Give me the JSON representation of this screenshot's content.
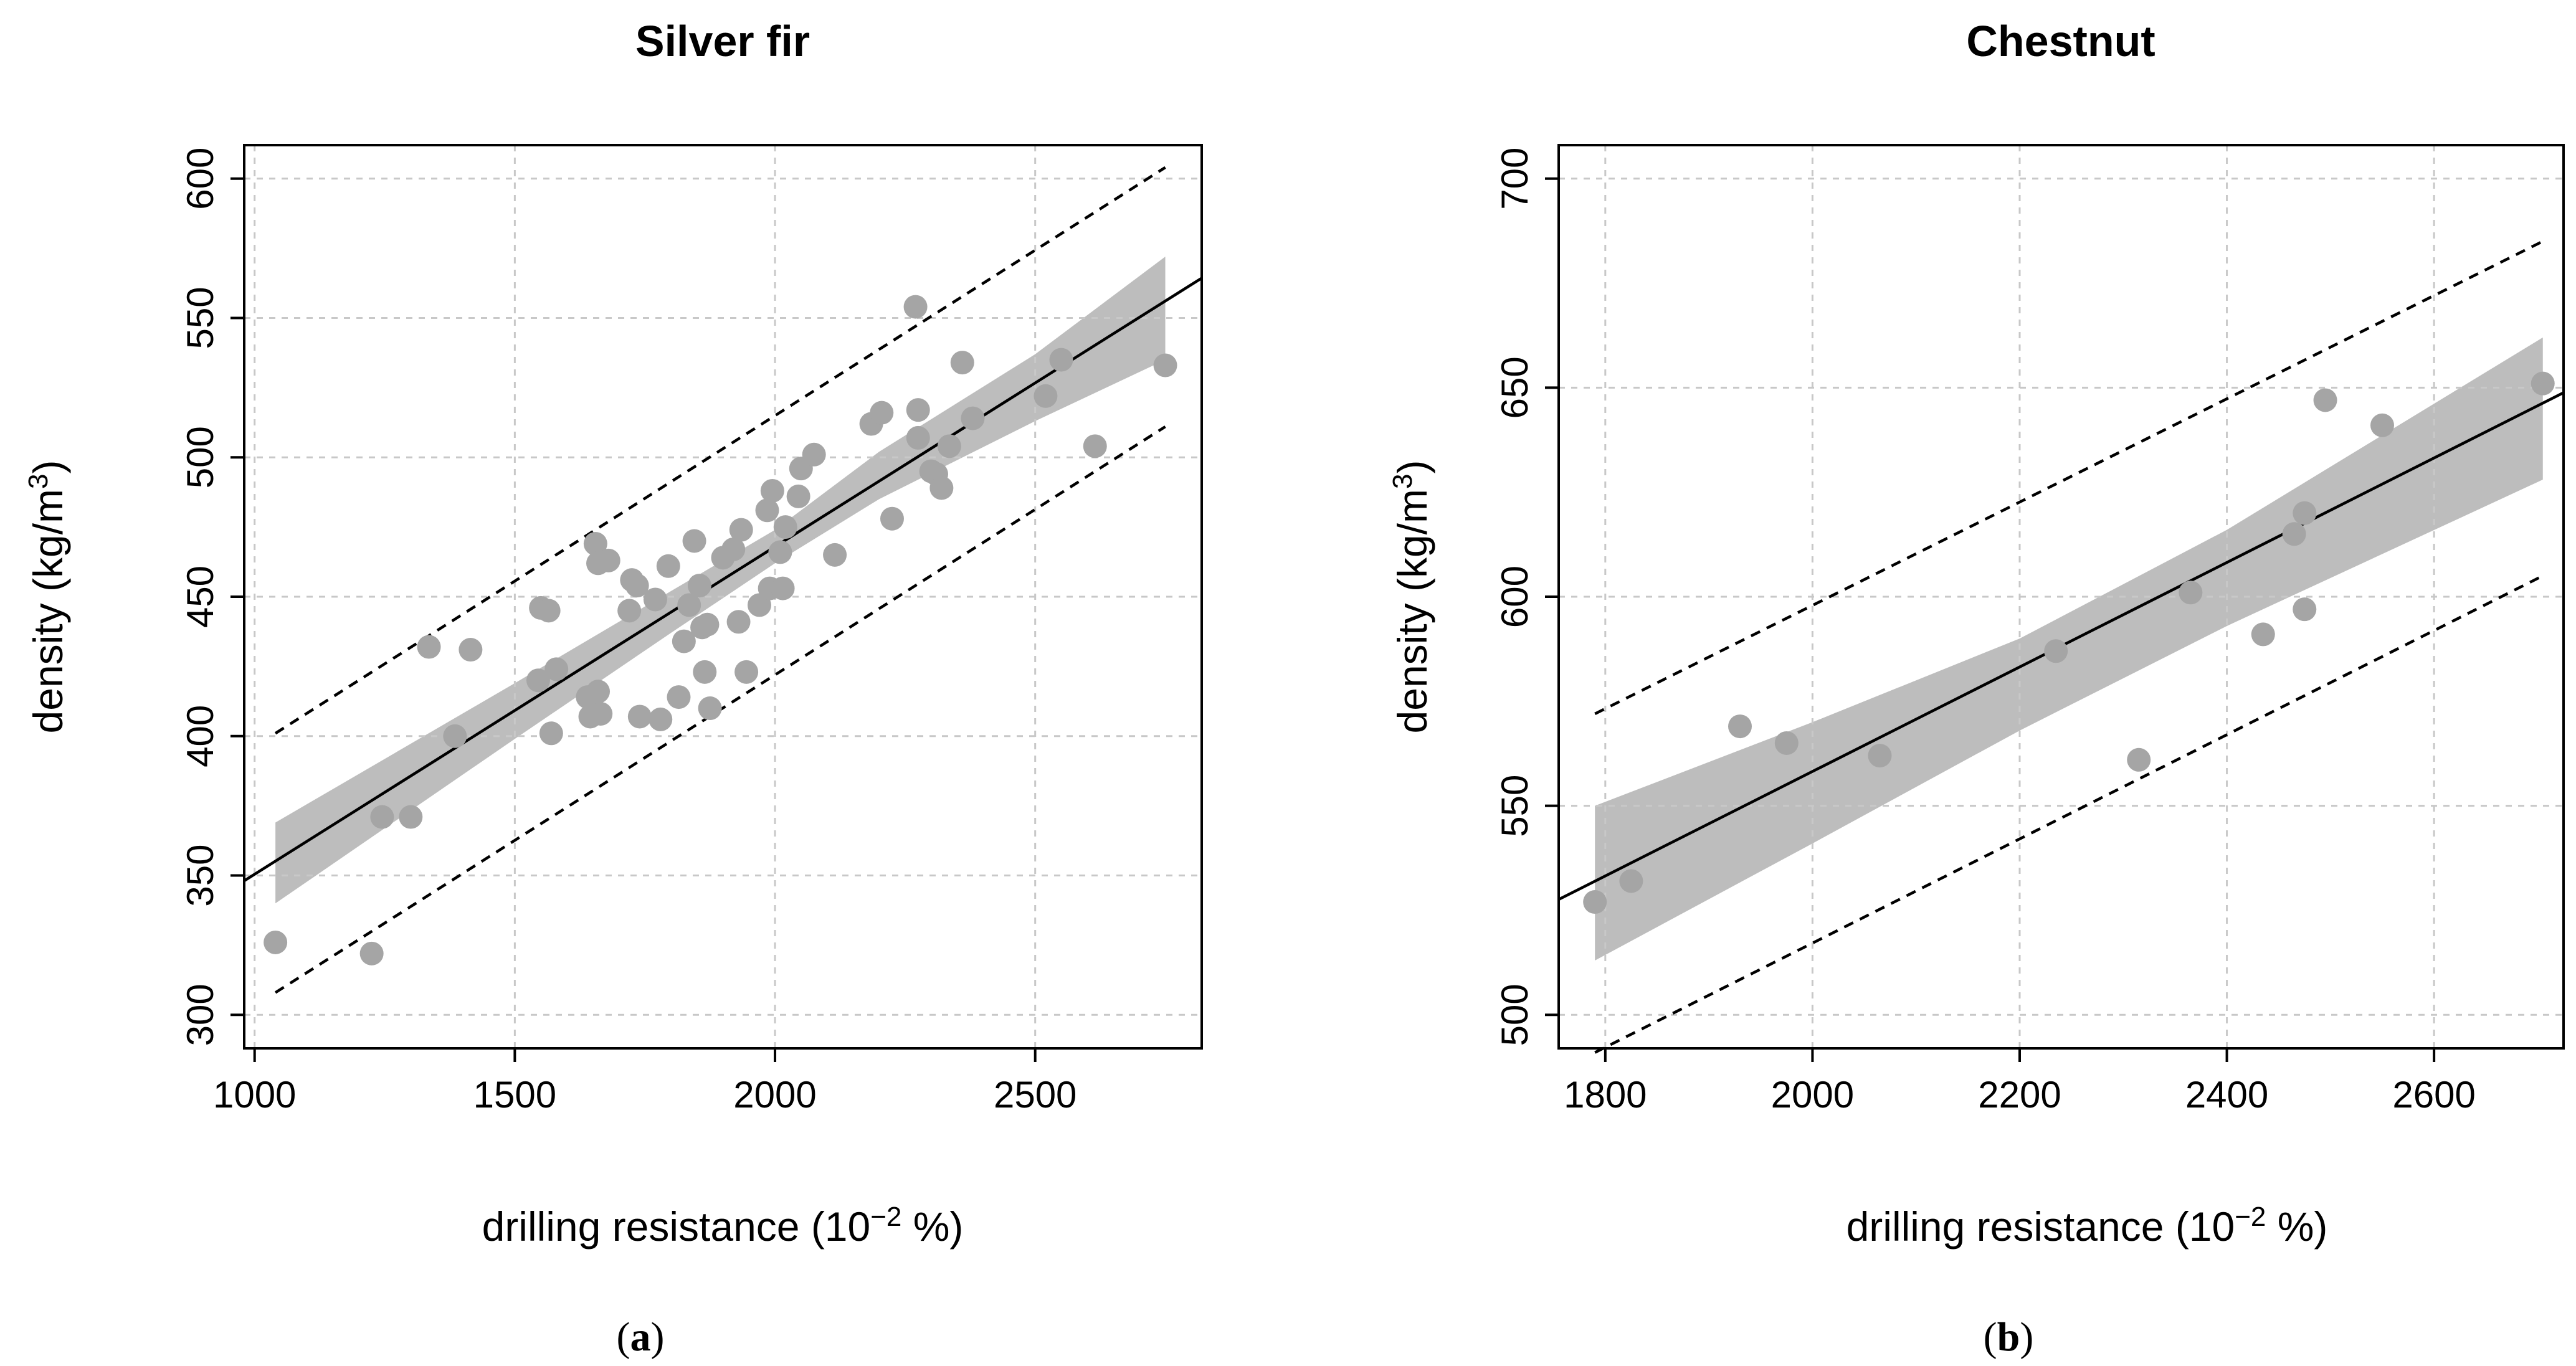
{
  "chart_data": [
    {
      "type": "scatter",
      "panel_label": "a",
      "title": "Silver fir",
      "xlabel": "drilling resistance (10",
      "xlabel_sup": "−2",
      "xlabel_suffix": " %)",
      "ylabel": "density (kg/m",
      "ylabel_sup": "3",
      "ylabel_suffix": ")",
      "xlim": [
        980,
        2820
      ],
      "ylim": [
        288,
        612
      ],
      "xticks": [
        1000,
        1500,
        2000,
        2500
      ],
      "yticks": [
        300,
        350,
        400,
        450,
        500,
        550,
        600
      ],
      "grid": true,
      "points": [
        [
          1040,
          326
        ],
        [
          1225,
          322
        ],
        [
          1245,
          371
        ],
        [
          1300,
          371
        ],
        [
          1335,
          432
        ],
        [
          1385,
          400
        ],
        [
          1415,
          431
        ],
        [
          1545,
          420
        ],
        [
          1550,
          446
        ],
        [
          1565,
          445
        ],
        [
          1570,
          401
        ],
        [
          1580,
          424
        ],
        [
          1640,
          414
        ],
        [
          1645,
          407
        ],
        [
          1655,
          469
        ],
        [
          1660,
          416
        ],
        [
          1660,
          462
        ],
        [
          1665,
          408
        ],
        [
          1680,
          463
        ],
        [
          1720,
          445
        ],
        [
          1725,
          456
        ],
        [
          1735,
          454
        ],
        [
          1740,
          407
        ],
        [
          1770,
          449
        ],
        [
          1780,
          406
        ],
        [
          1795,
          461
        ],
        [
          1815,
          414
        ],
        [
          1825,
          434
        ],
        [
          1835,
          447
        ],
        [
          1845,
          470
        ],
        [
          1855,
          454
        ],
        [
          1860,
          439
        ],
        [
          1865,
          423
        ],
        [
          1870,
          440
        ],
        [
          1875,
          410
        ],
        [
          1900,
          464
        ],
        [
          1920,
          467
        ],
        [
          1930,
          441
        ],
        [
          1935,
          474
        ],
        [
          1945,
          423
        ],
        [
          1970,
          447
        ],
        [
          1985,
          481
        ],
        [
          1990,
          453
        ],
        [
          1995,
          488
        ],
        [
          2010,
          466
        ],
        [
          2015,
          453
        ],
        [
          2020,
          475
        ],
        [
          2045,
          486
        ],
        [
          2050,
          496
        ],
        [
          2075,
          501
        ],
        [
          2115,
          465
        ],
        [
          2185,
          512
        ],
        [
          2205,
          516
        ],
        [
          2225,
          478
        ],
        [
          2270,
          554
        ],
        [
          2275,
          507
        ],
        [
          2275,
          517
        ],
        [
          2300,
          495
        ],
        [
          2310,
          494
        ],
        [
          2320,
          489
        ],
        [
          2335,
          504
        ],
        [
          2360,
          534
        ],
        [
          2380,
          514
        ],
        [
          2520,
          522
        ],
        [
          2550,
          535
        ],
        [
          2615,
          504
        ],
        [
          2750,
          533
        ]
      ],
      "fit": {
        "x": [
          980,
          2820
        ],
        "y": [
          348.1,
          564.3
        ]
      },
      "confidence_band": {
        "x": [
          1040,
          1500,
          1800,
          2000,
          2200,
          2500,
          2750
        ],
        "lower": [
          340,
          399,
          437,
          462,
          485,
          513,
          535
        ],
        "upper": [
          369,
          419,
          452,
          474,
          502,
          537,
          572
        ]
      },
      "prediction_upper": {
        "x": [
          1040,
          2750
        ],
        "y": [
          401,
          604
        ]
      },
      "prediction_lower": {
        "x": [
          1040,
          2750
        ],
        "y": [
          308,
          511
        ]
      }
    },
    {
      "type": "scatter",
      "panel_label": "b",
      "title": "Chestnut",
      "xlabel": "drilling resistance (10",
      "xlabel_sup": "−2",
      "xlabel_suffix": " %)",
      "ylabel": "density (kg/m",
      "ylabel_sup": "3",
      "ylabel_suffix": ")",
      "xlim": [
        1755,
        2725
      ],
      "ylim": [
        492,
        708
      ],
      "xticks": [
        1800,
        2000,
        2200,
        2400,
        2600
      ],
      "yticks": [
        500,
        550,
        600,
        650,
        700
      ],
      "grid": true,
      "points": [
        [
          1790,
          527
        ],
        [
          1825,
          532
        ],
        [
          1930,
          569
        ],
        [
          1975,
          565
        ],
        [
          2065,
          562
        ],
        [
          2235,
          587
        ],
        [
          2315,
          561
        ],
        [
          2365,
          601
        ],
        [
          2435,
          591
        ],
        [
          2465,
          615
        ],
        [
          2475,
          597
        ],
        [
          2475,
          620
        ],
        [
          2495,
          647
        ],
        [
          2550,
          641
        ],
        [
          2705,
          651
        ]
      ],
      "fit": {
        "x": [
          1755,
          2725
        ],
        "y": [
          527.6,
          648.8
        ]
      },
      "confidence_band": {
        "x": [
          1790,
          2000,
          2200,
          2400,
          2705
        ],
        "lower": [
          513,
          541,
          568,
          593,
          628
        ],
        "upper": [
          550,
          570,
          590,
          616,
          662
        ]
      },
      "prediction_upper": {
        "x": [
          1790,
          2705
        ],
        "y": [
          572,
          685
        ]
      },
      "prediction_lower": {
        "x": [
          1790,
          2705
        ],
        "y": [
          491,
          605
        ]
      }
    }
  ]
}
